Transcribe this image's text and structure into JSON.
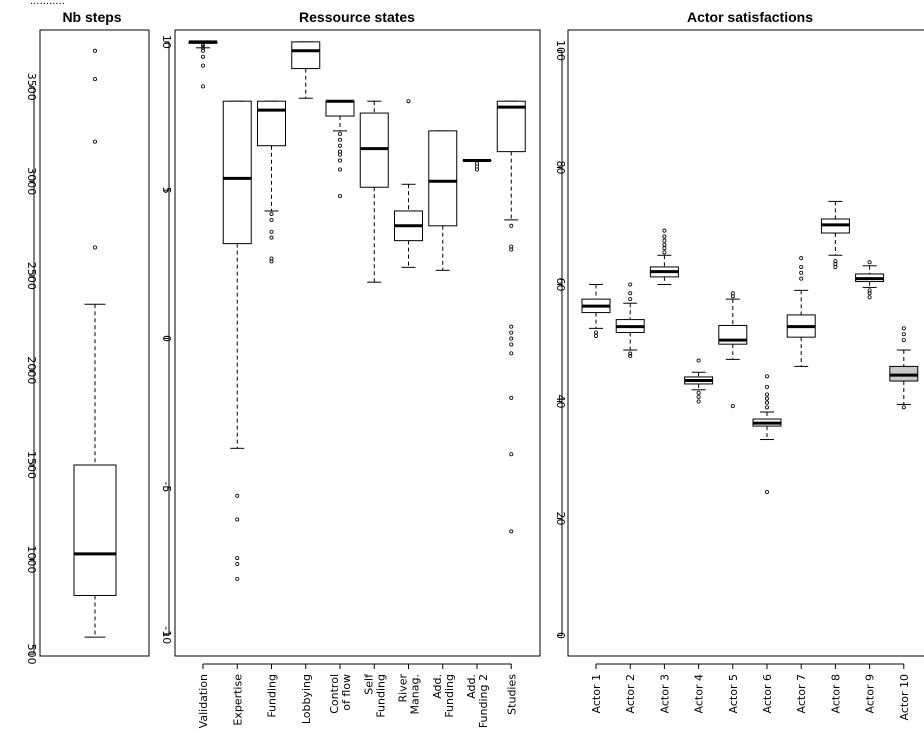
{
  "top_text": "...........",
  "chart_data": [
    {
      "type": "boxplot",
      "title": "Nb steps",
      "ylim": [
        490,
        3800
      ],
      "yticks": [
        "500",
        "1000",
        "1500",
        "2000",
        "2500",
        "3000",
        "3500"
      ],
      "categories": [
        ""
      ],
      "boxes": [
        {
          "whisker_low": 590,
          "q1": 810,
          "median": 1030,
          "q3": 1500,
          "whisker_high": 2350,
          "outliers": [
            2650,
            3210,
            3540,
            3690
          ],
          "fill": "#ffffff"
        }
      ]
    },
    {
      "type": "boxplot",
      "title": "Ressource states",
      "ylim": [
        -10.7,
        10.4
      ],
      "yticks": [
        "-10",
        "-5",
        "0",
        "5",
        "10"
      ],
      "categories": [
        "Validation",
        "Expertise",
        "Funding",
        "Lobbying",
        "Control\nof flow",
        "Self\nFunding",
        "River\nManag.",
        "Add.\nFunding",
        "Add.\nFunding 2",
        "Studies"
      ],
      "boxes": [
        {
          "whisker_low": 9.8,
          "q1": 9.95,
          "median": 10.0,
          "q3": 10.0,
          "whisker_high": 10.0,
          "outliers": [
            9.9,
            9.8,
            9.7,
            9.5,
            9.2,
            8.5
          ],
          "fill": "#ffffff"
        },
        {
          "whisker_low": -3.7,
          "q1": 3.2,
          "median": 5.4,
          "q3": 8.0,
          "whisker_high": 8.0,
          "outliers": [
            -5.3,
            -6.1,
            -7.4,
            -7.6,
            -8.1
          ],
          "fill": "#ffffff"
        },
        {
          "whisker_low": 4.3,
          "q1": 6.5,
          "median": 7.7,
          "q3": 8.0,
          "whisker_high": 8.0,
          "outliers": [
            4.2,
            4.0,
            3.6,
            3.4,
            2.7,
            2.6
          ],
          "fill": "#ffffff"
        },
        {
          "whisker_low": 8.1,
          "q1": 9.1,
          "median": 9.7,
          "q3": 10.0,
          "whisker_high": 10.0,
          "outliers": [],
          "fill": "#ffffff"
        },
        {
          "whisker_low": 7.0,
          "q1": 7.5,
          "median": 8.0,
          "q3": 8.0,
          "whisker_high": 8.0,
          "outliers": [
            6.9,
            6.7,
            6.5,
            6.3,
            6.2,
            6.0,
            5.7,
            4.8
          ],
          "fill": "#ffffff"
        },
        {
          "whisker_low": 1.9,
          "q1": 5.1,
          "median": 6.4,
          "q3": 7.6,
          "whisker_high": 8.0,
          "outliers": [],
          "fill": "#ffffff"
        },
        {
          "whisker_low": 2.4,
          "q1": 3.3,
          "median": 3.8,
          "q3": 4.3,
          "whisker_high": 5.2,
          "outliers": [
            8.0
          ],
          "fill": "#ffffff"
        },
        {
          "whisker_low": 2.3,
          "q1": 3.8,
          "median": 5.3,
          "q3": 7.0,
          "whisker_high": 7.0,
          "outliers": [],
          "fill": "#ffffff"
        },
        {
          "whisker_low": 6.0,
          "q1": 6.0,
          "median": 6.0,
          "q3": 6.0,
          "whisker_high": 6.0,
          "outliers": [
            5.9,
            5.8,
            5.7
          ],
          "fill": "#ffffff"
        },
        {
          "whisker_low": 4.0,
          "q1": 6.3,
          "median": 7.8,
          "q3": 8.0,
          "whisker_high": 8.0,
          "outliers": [
            3.8,
            3.1,
            3.0,
            0.4,
            0.2,
            0.0,
            -0.2,
            -0.5,
            -2.0,
            -3.9,
            -6.5
          ],
          "fill": "#ffffff"
        }
      ]
    },
    {
      "type": "boxplot",
      "title": "Actor satisfactions",
      "ylim": [
        -3.5,
        103.5
      ],
      "yticks": [
        "0",
        "20",
        "40",
        "60",
        "80",
        "100"
      ],
      "categories": [
        "Actor 1",
        "Actor 2",
        "Actor 3",
        "Actor 4",
        "Actor 5",
        "Actor 6",
        "Actor 7",
        "Actor 8",
        "Actor 9",
        "Actor 10"
      ],
      "boxes": [
        {
          "whisker_low": 52.5,
          "q1": 55.2,
          "median": 56.3,
          "q3": 57.5,
          "whisker_high": 60.0,
          "outliers": [
            51.8,
            51.2
          ],
          "fill": "#ffffff"
        },
        {
          "whisker_low": 48.8,
          "q1": 51.8,
          "median": 52.8,
          "q3": 54.0,
          "whisker_high": 56.8,
          "outliers": [
            48.2,
            47.8,
            57.5,
            58.5,
            60.0
          ],
          "fill": "#ffffff"
        },
        {
          "whisker_low": 60.0,
          "q1": 61.3,
          "median": 62.2,
          "q3": 63.0,
          "whisker_high": 65.0,
          "outliers": [
            65.5,
            66.2,
            66.8,
            67.5,
            68.2,
            69.2
          ],
          "fill": "#ffffff"
        },
        {
          "whisker_low": 42.0,
          "q1": 43.0,
          "median": 43.6,
          "q3": 44.2,
          "whisker_high": 45.0,
          "outliers": [
            41.5,
            40.8,
            40.0,
            47.0
          ],
          "fill": "#ffffff"
        },
        {
          "whisker_low": 47.2,
          "q1": 49.8,
          "median": 50.5,
          "q3": 53.0,
          "whisker_high": 57.5,
          "outliers": [
            58.0,
            58.5,
            39.2
          ],
          "fill": "#ffffff"
        },
        {
          "whisker_low": 33.5,
          "q1": 35.8,
          "median": 36.3,
          "q3": 37.0,
          "whisker_high": 38.2,
          "outliers": [
            39.0,
            39.8,
            40.5,
            41.2,
            42.5,
            44.3,
            24.5
          ],
          "fill": "#ffffff"
        },
        {
          "whisker_low": 46.0,
          "q1": 51.0,
          "median": 52.8,
          "q3": 54.8,
          "whisker_high": 59.0,
          "outliers": [
            61.0,
            62.0,
            63.0,
            64.5
          ],
          "fill": "#ffffff"
        },
        {
          "whisker_low": 65.0,
          "q1": 68.8,
          "median": 70.2,
          "q3": 71.2,
          "whisker_high": 74.2,
          "outliers": [
            64.0,
            63.5,
            63.0
          ],
          "fill": "#ffffff"
        },
        {
          "whisker_low": 59.5,
          "q1": 60.5,
          "median": 61.0,
          "q3": 61.8,
          "whisker_high": 63.2,
          "outliers": [
            59.0,
            58.5,
            57.8,
            63.8
          ],
          "fill": "#ffffff"
        },
        {
          "whisker_low": 39.5,
          "q1": 43.5,
          "median": 44.5,
          "q3": 46.0,
          "whisker_high": 48.8,
          "outliers": [
            39.0,
            50.5,
            51.5,
            52.5
          ],
          "fill": "#c8c8c8"
        }
      ]
    }
  ]
}
